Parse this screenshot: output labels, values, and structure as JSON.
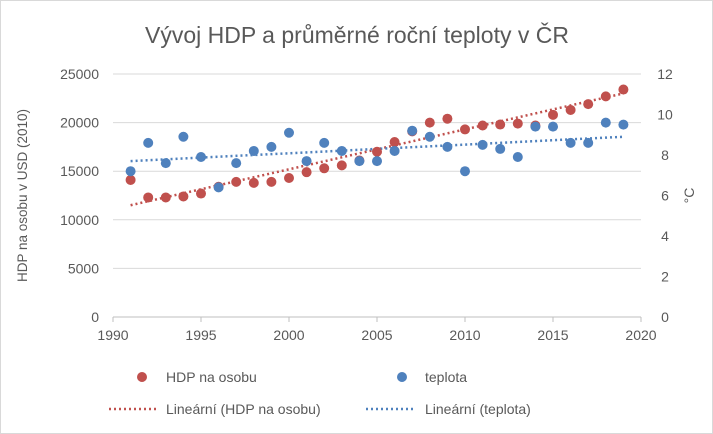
{
  "chart_data": {
    "type": "scatter",
    "title": "Vývoj HDP a průměrné roční teploty v ČR",
    "xlabel": "",
    "ylabel": "HDP na osobu v USD (2010)",
    "y2label": "°C",
    "xlim": [
      1990,
      2020
    ],
    "ylim": [
      0,
      25000
    ],
    "y2lim": [
      0,
      12
    ],
    "x_ticks": [
      "1990",
      "1995",
      "2000",
      "2005",
      "2010",
      "2015",
      "2020"
    ],
    "y_ticks": [
      "0",
      "5000",
      "10000",
      "15000",
      "20000",
      "25000"
    ],
    "y2_ticks": [
      "0",
      "2",
      "4",
      "6",
      "8",
      "10",
      "12"
    ],
    "grid": "horizontal",
    "legend_position": "bottom",
    "series": [
      {
        "name": "HDP na osobu",
        "axis": "left",
        "color": "#c0504d",
        "x": [
          1991,
          1992,
          1993,
          1994,
          1995,
          1996,
          1997,
          1998,
          1999,
          2000,
          2001,
          2002,
          2003,
          2004,
          2005,
          2006,
          2007,
          2008,
          2009,
          2010,
          2011,
          2012,
          2013,
          2014,
          2015,
          2016,
          2017,
          2018,
          2019
        ],
        "y": [
          14100,
          12300,
          12300,
          12400,
          12700,
          13400,
          13900,
          13800,
          13900,
          14300,
          14900,
          15300,
          15600,
          16100,
          17000,
          18000,
          19100,
          20000,
          20400,
          19300,
          19700,
          19800,
          19900,
          19700,
          20800,
          21300,
          21900,
          22700,
          23400
        ]
      },
      {
        "name": "teplota",
        "axis": "right",
        "color": "#4f81bd",
        "x": [
          1991,
          1992,
          1993,
          1994,
          1995,
          1996,
          1997,
          1998,
          1999,
          2000,
          2001,
          2002,
          2003,
          2004,
          2005,
          2006,
          2007,
          2008,
          2009,
          2010,
          2011,
          2012,
          2013,
          2014,
          2015,
          2016,
          2017,
          2018,
          2019
        ],
        "y": [
          7.2,
          8.6,
          7.6,
          8.9,
          7.9,
          6.4,
          7.6,
          8.2,
          8.4,
          9.1,
          7.7,
          8.6,
          8.2,
          7.7,
          7.7,
          8.2,
          9.2,
          8.9,
          8.4,
          7.2,
          8.5,
          8.3,
          7.9,
          9.4,
          9.4,
          8.6,
          8.6,
          9.6,
          9.5
        ]
      },
      {
        "name": "Lineární (HDP na osobu)",
        "axis": "left",
        "color": "#c0504d",
        "trendline": "linear",
        "of_series": "HDP na osobu",
        "x": [
          1991,
          2019
        ],
        "y": [
          11500,
          23000
        ]
      },
      {
        "name": "Lineární (teplota)",
        "axis": "right",
        "color": "#4f81bd",
        "trendline": "linear",
        "of_series": "teplota",
        "x": [
          1991,
          2019
        ],
        "y": [
          7.7,
          8.9
        ]
      }
    ]
  }
}
